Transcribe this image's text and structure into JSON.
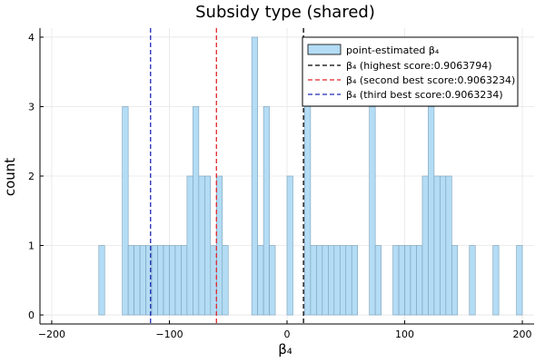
{
  "chart_data": {
    "type": "bar",
    "title": "Subsidy type (shared)",
    "xlabel": "β₄",
    "ylabel": "count",
    "xlim": [
      -210,
      210
    ],
    "ylim": [
      -0.13,
      4.13
    ],
    "xticks": [
      -200,
      -100,
      0,
      100,
      200
    ],
    "xtick_labels": [
      "−200",
      "−100",
      "0",
      "100",
      "200"
    ],
    "yticks": [
      0,
      1,
      2,
      3,
      4
    ],
    "yticks_labels": [
      "0",
      "1",
      "2",
      "3",
      "4"
    ],
    "grid": true,
    "legend_position": "top-right",
    "bin_width": 5,
    "bins": [
      {
        "x0": -160,
        "x1": -155,
        "count": 1
      },
      {
        "x0": -140,
        "x1": -135,
        "count": 3
      },
      {
        "x0": -135,
        "x1": -130,
        "count": 1
      },
      {
        "x0": -130,
        "x1": -125,
        "count": 1
      },
      {
        "x0": -125,
        "x1": -120,
        "count": 1
      },
      {
        "x0": -120,
        "x1": -115,
        "count": 1
      },
      {
        "x0": -115,
        "x1": -110,
        "count": 1
      },
      {
        "x0": -110,
        "x1": -105,
        "count": 1
      },
      {
        "x0": -105,
        "x1": -100,
        "count": 1
      },
      {
        "x0": -100,
        "x1": -95,
        "count": 1
      },
      {
        "x0": -95,
        "x1": -90,
        "count": 1
      },
      {
        "x0": -90,
        "x1": -85,
        "count": 1
      },
      {
        "x0": -85,
        "x1": -80,
        "count": 2
      },
      {
        "x0": -80,
        "x1": -75,
        "count": 3
      },
      {
        "x0": -75,
        "x1": -70,
        "count": 2
      },
      {
        "x0": -70,
        "x1": -65,
        "count": 2
      },
      {
        "x0": -65,
        "x1": -60,
        "count": 1
      },
      {
        "x0": -60,
        "x1": -55,
        "count": 2
      },
      {
        "x0": -55,
        "x1": -50,
        "count": 1
      },
      {
        "x0": -30,
        "x1": -25,
        "count": 4
      },
      {
        "x0": -25,
        "x1": -20,
        "count": 1
      },
      {
        "x0": -20,
        "x1": -15,
        "count": 3
      },
      {
        "x0": -15,
        "x1": -10,
        "count": 1
      },
      {
        "x0": 0,
        "x1": 5,
        "count": 2
      },
      {
        "x0": 15,
        "x1": 20,
        "count": 4
      },
      {
        "x0": 20,
        "x1": 25,
        "count": 1
      },
      {
        "x0": 25,
        "x1": 30,
        "count": 1
      },
      {
        "x0": 30,
        "x1": 35,
        "count": 1
      },
      {
        "x0": 35,
        "x1": 40,
        "count": 1
      },
      {
        "x0": 40,
        "x1": 45,
        "count": 1
      },
      {
        "x0": 45,
        "x1": 50,
        "count": 1
      },
      {
        "x0": 50,
        "x1": 55,
        "count": 1
      },
      {
        "x0": 55,
        "x1": 60,
        "count": 1
      },
      {
        "x0": 70,
        "x1": 75,
        "count": 3
      },
      {
        "x0": 75,
        "x1": 80,
        "count": 1
      },
      {
        "x0": 90,
        "x1": 95,
        "count": 1
      },
      {
        "x0": 95,
        "x1": 100,
        "count": 1
      },
      {
        "x0": 100,
        "x1": 105,
        "count": 1
      },
      {
        "x0": 105,
        "x1": 110,
        "count": 1
      },
      {
        "x0": 110,
        "x1": 115,
        "count": 1
      },
      {
        "x0": 115,
        "x1": 120,
        "count": 2
      },
      {
        "x0": 120,
        "x1": 125,
        "count": 3
      },
      {
        "x0": 125,
        "x1": 130,
        "count": 2
      },
      {
        "x0": 130,
        "x1": 135,
        "count": 2
      },
      {
        "x0": 135,
        "x1": 140,
        "count": 2
      },
      {
        "x0": 140,
        "x1": 145,
        "count": 1
      },
      {
        "x0": 155,
        "x1": 160,
        "count": 1
      },
      {
        "x0": 175,
        "x1": 180,
        "count": 1
      },
      {
        "x0": 195,
        "x1": 200,
        "count": 1
      }
    ],
    "vlines": [
      {
        "name": "β₄ (highest score:0.9063794)",
        "x": 14,
        "color": "#000000"
      },
      {
        "name": "β₄ (second best score:0.9063234)",
        "x": -60,
        "color": "#e0262b"
      },
      {
        "name": "β₄ (third best score:0.9063234)",
        "x": -116,
        "color": "#1f2ab5"
      }
    ],
    "series_name": "point-estimated β₄",
    "bar_color": "#b4dcf5",
    "bar_edge_color": "#7a9fb8"
  }
}
